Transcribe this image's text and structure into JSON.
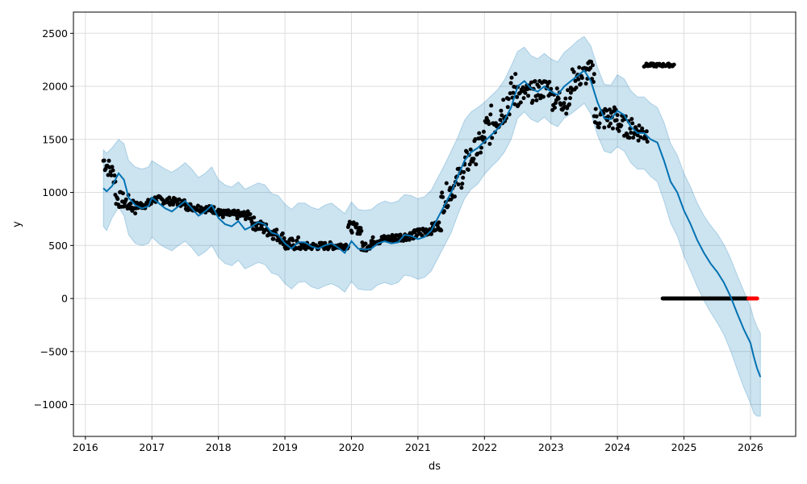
{
  "chart_data": {
    "type": "line",
    "title": "",
    "xlabel": "ds",
    "ylabel": "y",
    "xlim": [
      2015.82,
      2026.68
    ],
    "ylim": [
      -1300,
      2700
    ],
    "grid": true,
    "legend": "none",
    "colors": {
      "forecast_line": "#0072B2",
      "uncertainty_band": "#0072B2",
      "observed_points": "#000000",
      "future_points": "#ff0000",
      "grid": "#dddddd"
    },
    "x_ticks": [
      2016,
      2017,
      2018,
      2019,
      2020,
      2021,
      2022,
      2023,
      2024,
      2025,
      2026
    ],
    "x_tick_labels": [
      "2016",
      "2017",
      "2018",
      "2019",
      "2020",
      "2021",
      "2022",
      "2023",
      "2024",
      "2025",
      "2026"
    ],
    "y_ticks": [
      -1000,
      -500,
      0,
      500,
      1000,
      1500,
      2000,
      2500
    ],
    "y_tick_labels": [
      "−1000",
      "−500",
      "0",
      "500",
      "1000",
      "1500",
      "2000",
      "2500"
    ],
    "series": [
      {
        "role": "forecast",
        "x": [
          2016.27,
          2016.32,
          2016.4,
          2016.5,
          2016.58,
          2016.65,
          2016.75,
          2016.85,
          2016.95,
          2017.0,
          2017.1,
          2017.2,
          2017.3,
          2017.4,
          2017.5,
          2017.6,
          2017.7,
          2017.8,
          2017.9,
          2018.0,
          2018.1,
          2018.2,
          2018.3,
          2018.4,
          2018.5,
          2018.6,
          2018.7,
          2018.8,
          2018.9,
          2019.0,
          2019.1,
          2019.2,
          2019.3,
          2019.4,
          2019.5,
          2019.6,
          2019.7,
          2019.8,
          2019.9,
          2020.0,
          2020.1,
          2020.2,
          2020.3,
          2020.4,
          2020.5,
          2020.6,
          2020.7,
          2020.8,
          2020.9,
          2021.0,
          2021.1,
          2021.2,
          2021.3,
          2021.4,
          2021.5,
          2021.6,
          2021.7,
          2021.8,
          2021.9,
          2022.0,
          2022.1,
          2022.2,
          2022.3,
          2022.4,
          2022.5,
          2022.6,
          2022.7,
          2022.8,
          2022.9,
          2023.0,
          2023.1,
          2023.2,
          2023.3,
          2023.4,
          2023.5,
          2023.6,
          2023.7,
          2023.8,
          2023.9,
          2024.0,
          2024.1,
          2024.2,
          2024.3,
          2024.4,
          2024.5,
          2024.6,
          2024.7,
          2024.8,
          2024.9,
          2025.0,
          2025.1,
          2025.2,
          2025.3,
          2025.4,
          2025.5,
          2025.6,
          2025.7,
          2025.8,
          2025.9,
          2026.0,
          2026.05,
          2026.1,
          2026.15
        ],
        "y": [
          1040,
          1010,
          1060,
          1180,
          1120,
          950,
          880,
          850,
          870,
          950,
          900,
          850,
          820,
          870,
          920,
          850,
          780,
          820,
          880,
          760,
          700,
          680,
          730,
          650,
          680,
          720,
          700,
          620,
          600,
          520,
          470,
          530,
          530,
          490,
          470,
          500,
          520,
          480,
          430,
          540,
          470,
          460,
          470,
          520,
          540,
          520,
          530,
          600,
          590,
          560,
          580,
          640,
          760,
          880,
          1000,
          1150,
          1300,
          1380,
          1420,
          1480,
          1540,
          1600,
          1680,
          1800,
          2000,
          2050,
          1980,
          1950,
          2000,
          1950,
          1920,
          2000,
          2050,
          2100,
          2150,
          2050,
          1850,
          1700,
          1690,
          1770,
          1730,
          1620,
          1560,
          1560,
          1500,
          1470,
          1300,
          1100,
          1000,
          830,
          700,
          550,
          430,
          330,
          250,
          150,
          20,
          -140,
          -290,
          -420,
          -550,
          -660,
          -740
        ],
        "y_lower": [
          680,
          640,
          760,
          860,
          780,
          600,
          520,
          500,
          520,
          580,
          520,
          480,
          450,
          500,
          540,
          480,
          400,
          440,
          500,
          390,
          330,
          310,
          360,
          280,
          310,
          340,
          320,
          240,
          220,
          140,
          90,
          150,
          160,
          110,
          90,
          120,
          140,
          110,
          60,
          160,
          90,
          80,
          80,
          130,
          150,
          130,
          150,
          220,
          210,
          180,
          200,
          260,
          380,
          500,
          620,
          790,
          940,
          1030,
          1080,
          1170,
          1240,
          1300,
          1380,
          1500,
          1700,
          1760,
          1690,
          1660,
          1710,
          1650,
          1620,
          1700,
          1740,
          1790,
          1840,
          1740,
          1540,
          1390,
          1370,
          1430,
          1390,
          1280,
          1220,
          1220,
          1150,
          1100,
          920,
          710,
          590,
          400,
          260,
          110,
          -20,
          -130,
          -230,
          -340,
          -490,
          -670,
          -840,
          -990,
          -1080,
          -1110,
          -1110
        ],
        "y_upper": [
          1400,
          1370,
          1420,
          1500,
          1460,
          1300,
          1240,
          1220,
          1240,
          1300,
          1260,
          1220,
          1190,
          1230,
          1280,
          1220,
          1140,
          1180,
          1240,
          1120,
          1070,
          1050,
          1100,
          1030,
          1060,
          1090,
          1070,
          990,
          970,
          890,
          840,
          900,
          900,
          860,
          840,
          880,
          900,
          850,
          800,
          910,
          840,
          830,
          840,
          890,
          920,
          900,
          920,
          980,
          970,
          940,
          960,
          1020,
          1140,
          1260,
          1390,
          1520,
          1680,
          1760,
          1800,
          1850,
          1910,
          1970,
          2060,
          2190,
          2330,
          2370,
          2290,
          2260,
          2310,
          2260,
          2230,
          2320,
          2370,
          2430,
          2470,
          2380,
          2180,
          2020,
          2010,
          2110,
          2070,
          1960,
          1900,
          1900,
          1840,
          1800,
          1660,
          1460,
          1350,
          1180,
          1050,
          900,
          780,
          690,
          610,
          510,
          380,
          220,
          70,
          -80,
          -190,
          -270,
          -330
        ]
      },
      {
        "role": "observed",
        "segments": [
          {
            "x0": 2016.27,
            "x1": 2016.45,
            "y_start": 1300,
            "y_end": 1150,
            "spread": 90
          },
          {
            "x0": 2016.45,
            "x1": 2016.75,
            "y_start": 950,
            "y_end": 870,
            "spread": 80
          },
          {
            "x0": 2016.75,
            "x1": 2017.0,
            "y_start": 870,
            "y_end": 900,
            "spread": 40
          },
          {
            "x0": 2017.0,
            "x1": 2017.5,
            "y_start": 940,
            "y_end": 900,
            "spread": 35
          },
          {
            "x0": 2017.5,
            "x1": 2018.0,
            "y_start": 870,
            "y_end": 830,
            "spread": 35
          },
          {
            "x0": 2018.0,
            "x1": 2018.5,
            "y_start": 800,
            "y_end": 780,
            "spread": 40
          },
          {
            "x0": 2018.5,
            "x1": 2019.0,
            "y_start": 720,
            "y_end": 560,
            "spread": 60
          },
          {
            "x0": 2019.0,
            "x1": 2019.2,
            "y_start": 500,
            "y_end": 520,
            "spread": 60
          },
          {
            "x0": 2019.2,
            "x1": 2019.95,
            "y_start": 490,
            "y_end": 500,
            "spread": 35
          },
          {
            "x0": 2019.95,
            "x1": 2020.15,
            "y_start": 680,
            "y_end": 650,
            "spread": 50
          },
          {
            "x0": 2020.15,
            "x1": 2020.3,
            "y_start": 480,
            "y_end": 520,
            "spread": 50
          },
          {
            "x0": 2020.3,
            "x1": 2020.95,
            "y_start": 540,
            "y_end": 600,
            "spread": 40
          },
          {
            "x0": 2020.95,
            "x1": 2021.35,
            "y_start": 600,
            "y_end": 690,
            "spread": 50
          },
          {
            "x0": 2021.35,
            "x1": 2021.7,
            "y_start": 900,
            "y_end": 1200,
            "spread": 120
          },
          {
            "x0": 2021.7,
            "x1": 2022.0,
            "y_start": 1250,
            "y_end": 1500,
            "spread": 130
          },
          {
            "x0": 2022.0,
            "x1": 2022.5,
            "y_start": 1550,
            "y_end": 2000,
            "spread": 180
          },
          {
            "x0": 2022.5,
            "x1": 2023.0,
            "y_start": 1900,
            "y_end": 2000,
            "spread": 100
          },
          {
            "x0": 2023.0,
            "x1": 2023.3,
            "y_start": 1900,
            "y_end": 1850,
            "spread": 120
          },
          {
            "x0": 2023.3,
            "x1": 2023.65,
            "y_start": 2050,
            "y_end": 2150,
            "spread": 110
          },
          {
            "x0": 2023.65,
            "x1": 2024.0,
            "y_start": 1700,
            "y_end": 1700,
            "spread": 120
          },
          {
            "x0": 2024.0,
            "x1": 2024.45,
            "y_start": 1650,
            "y_end": 1550,
            "spread": 100
          },
          {
            "x0": 2024.4,
            "x1": 2024.85,
            "y_start": 2200,
            "y_end": 2200,
            "spread": 15
          },
          {
            "x0": 2024.68,
            "x1": 2025.97,
            "y_start": 0,
            "y_end": 0,
            "spread": 0
          }
        ]
      },
      {
        "role": "future",
        "x0": 2025.97,
        "x1": 2026.1,
        "y": 0
      }
    ]
  }
}
